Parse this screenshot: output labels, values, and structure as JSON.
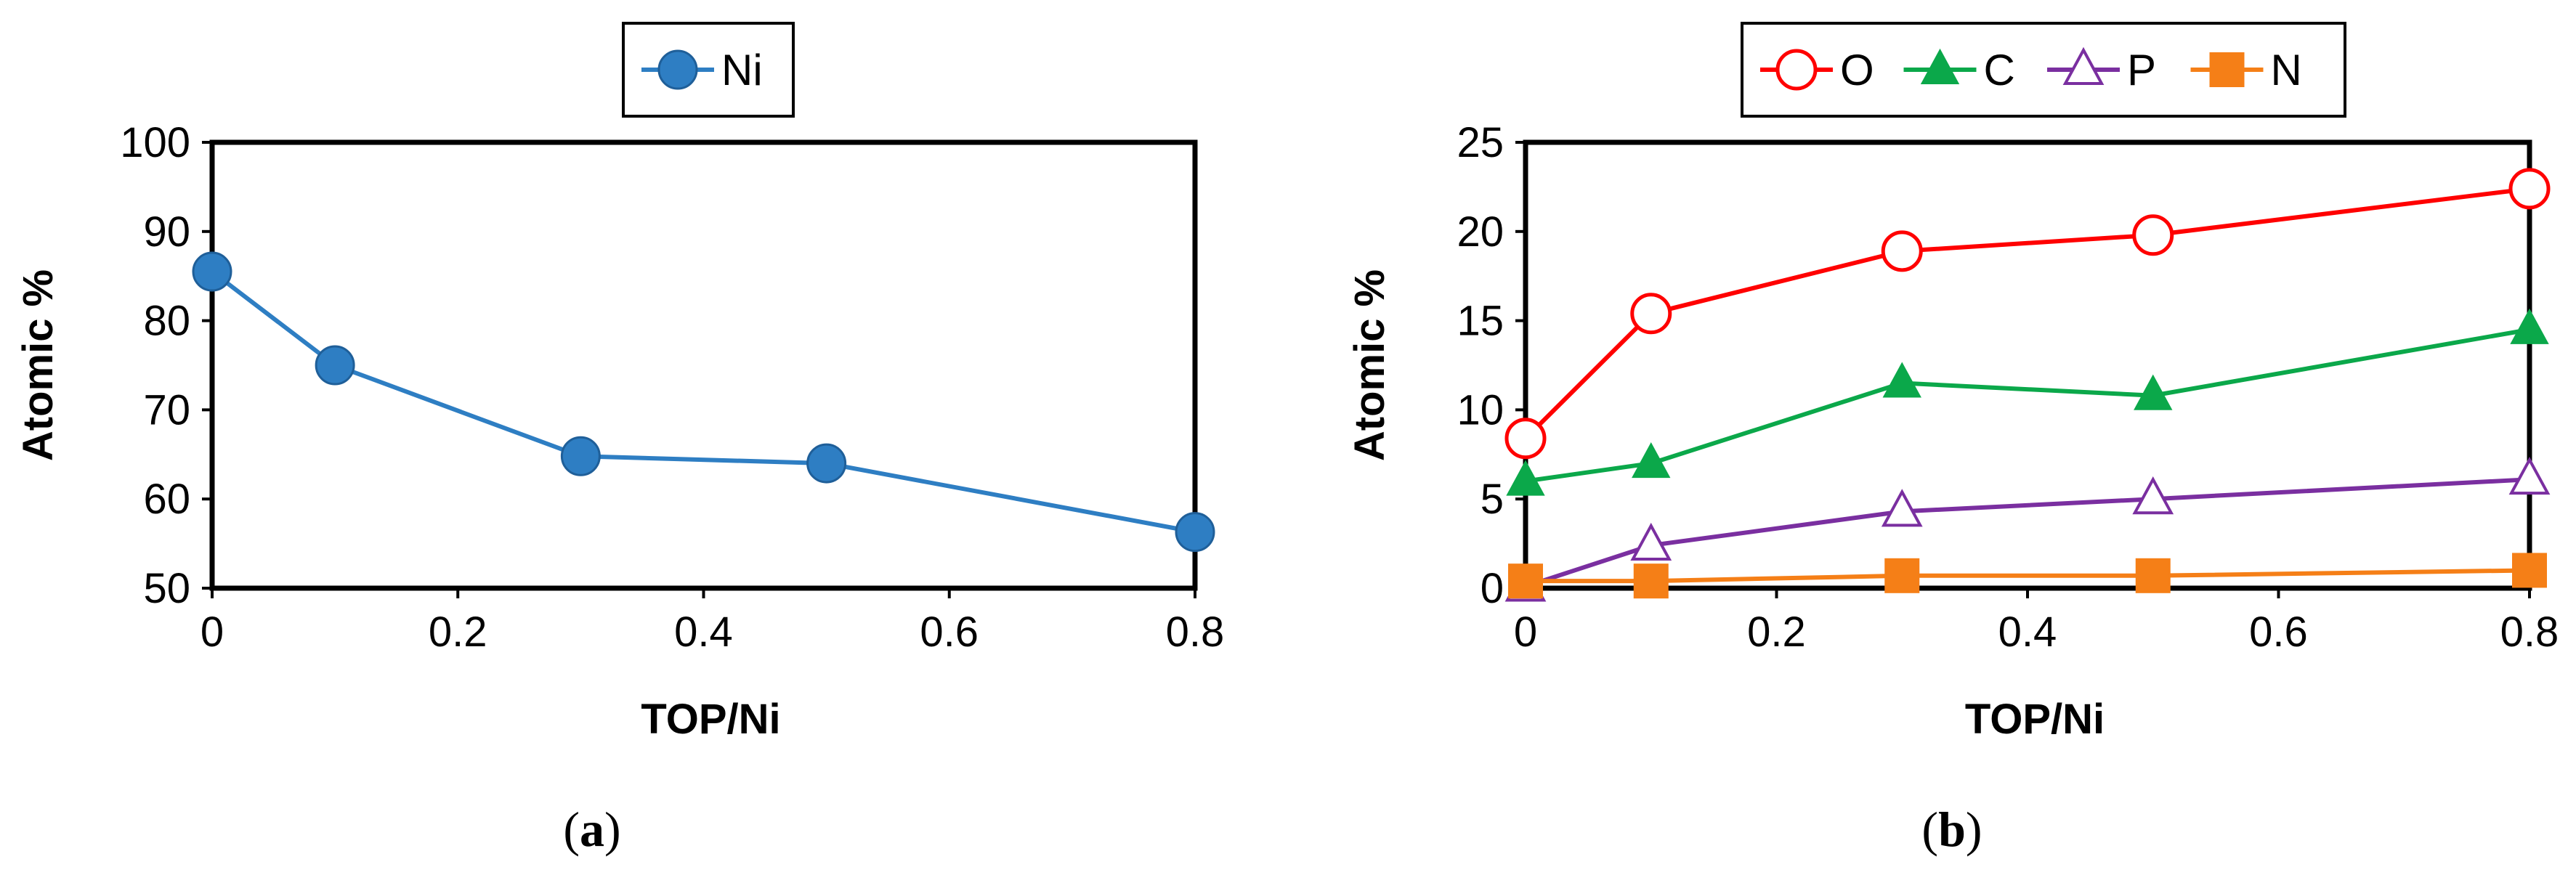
{
  "chart_data": [
    {
      "type": "line",
      "panel_label": "a",
      "xlabel": "TOP/Ni",
      "ylabel": "Atomic %",
      "xlim": [
        0,
        0.8
      ],
      "ylim": [
        50,
        100
      ],
      "x_ticks": [
        "0",
        "0.2",
        "0.4",
        "0.6",
        "0.8"
      ],
      "y_ticks": [
        "50",
        "60",
        "70",
        "80",
        "90",
        "100"
      ],
      "legend_position": "top-center",
      "x": [
        0,
        0.1,
        0.3,
        0.5,
        0.8
      ],
      "series": [
        {
          "name": "Ni",
          "color": "#2E7EC3",
          "marker": "filled-circle",
          "values": [
            85.5,
            75.0,
            64.8,
            64.0,
            56.3
          ]
        }
      ]
    },
    {
      "type": "line",
      "panel_label": "b",
      "xlabel": "TOP/Ni",
      "ylabel": "Atomic %",
      "xlim": [
        0,
        0.8
      ],
      "ylim": [
        0,
        25
      ],
      "x_ticks": [
        "0",
        "0.2",
        "0.4",
        "0.6",
        "0.8"
      ],
      "y_ticks": [
        "0",
        "5",
        "10",
        "15",
        "20",
        "25"
      ],
      "legend_position": "top-center",
      "x": [
        0,
        0.1,
        0.3,
        0.5,
        0.8
      ],
      "series": [
        {
          "name": "O",
          "color": "#FF0000",
          "marker": "open-circle",
          "values": [
            8.4,
            15.4,
            18.9,
            19.8,
            22.4
          ]
        },
        {
          "name": "C",
          "color": "#0BA84A",
          "marker": "filled-triangle",
          "values": [
            6.0,
            7.0,
            11.5,
            10.8,
            14.5
          ]
        },
        {
          "name": "P",
          "color": "#7A2FA0",
          "marker": "open-triangle",
          "values": [
            0.1,
            2.4,
            4.3,
            5.0,
            6.1
          ]
        },
        {
          "name": "N",
          "color": "#F57F17",
          "marker": "filled-square",
          "values": [
            0.4,
            0.4,
            0.7,
            0.7,
            1.0
          ]
        }
      ]
    }
  ]
}
